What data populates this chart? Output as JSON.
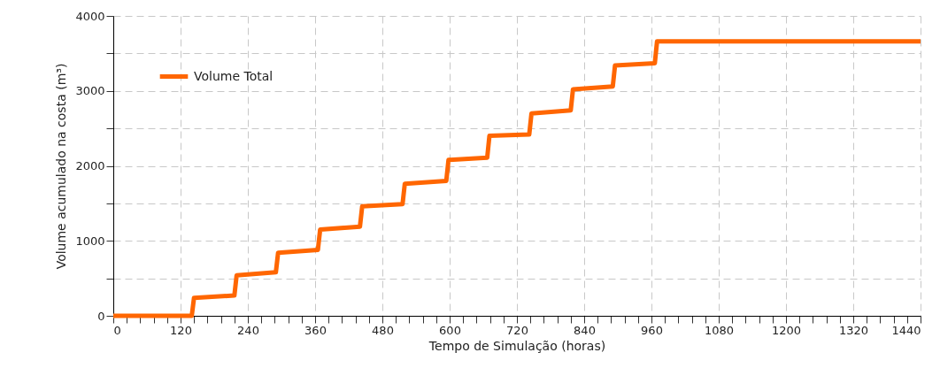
{
  "chart_data": {
    "type": "line",
    "xlabel": "Tempo de Simulação (horas)",
    "ylabel": "Volume acumulado na costa (m³)",
    "x": [
      0,
      140,
      144,
      216,
      220,
      290,
      294,
      365,
      369,
      440,
      444,
      516,
      520,
      594,
      598,
      667,
      671,
      742,
      746,
      816,
      820,
      891,
      895,
      966,
      970,
      1440
    ],
    "series": [
      {
        "name": "Volume Total",
        "color": "#ff6600",
        "values": [
          0,
          0,
          240,
          270,
          540,
          580,
          840,
          880,
          1150,
          1190,
          1460,
          1490,
          1760,
          1800,
          2080,
          2110,
          2400,
          2420,
          2700,
          2740,
          3020,
          3060,
          3340,
          3370,
          3660,
          3660
        ]
      }
    ],
    "xlim": [
      0,
      1440
    ],
    "ylim": [
      0,
      4000
    ],
    "xticks": [
      0,
      {
        "value": 24,
        "label": null
      },
      {
        "value": 48,
        "label": null
      },
      {
        "value": 72,
        "label": null
      },
      {
        "value": 96,
        "label": null
      },
      120,
      {
        "value": 144,
        "label": null
      },
      {
        "value": 168,
        "label": null
      },
      {
        "value": 192,
        "label": null
      },
      {
        "value": 216,
        "label": null
      },
      240,
      {
        "value": 264,
        "label": null
      },
      {
        "value": 288,
        "label": null
      },
      {
        "value": 312,
        "label": null
      },
      {
        "value": 336,
        "label": null
      },
      360,
      {
        "value": 384,
        "label": null
      },
      {
        "value": 408,
        "label": null
      },
      {
        "value": 432,
        "label": null
      },
      {
        "value": 456,
        "label": null
      },
      480,
      {
        "value": 504,
        "label": null
      },
      {
        "value": 528,
        "label": null
      },
      {
        "value": 552,
        "label": null
      },
      {
        "value": 576,
        "label": null
      },
      600,
      {
        "value": 624,
        "label": null
      },
      {
        "value": 648,
        "label": null
      },
      {
        "value": 672,
        "label": null
      },
      {
        "value": 696,
        "label": null
      },
      720,
      {
        "value": 744,
        "label": null
      },
      {
        "value": 768,
        "label": null
      },
      {
        "value": 792,
        "label": null
      },
      {
        "value": 816,
        "label": null
      },
      840,
      {
        "value": 864,
        "label": null
      },
      {
        "value": 888,
        "label": null
      },
      {
        "value": 912,
        "label": null
      },
      {
        "value": 936,
        "label": null
      },
      960,
      {
        "value": 984,
        "label": null
      },
      {
        "value": 1008,
        "label": null
      },
      {
        "value": 1032,
        "label": null
      },
      {
        "value": 1056,
        "label": null
      },
      1080,
      {
        "value": 1104,
        "label": null
      },
      {
        "value": 1128,
        "label": null
      },
      {
        "value": 1152,
        "label": null
      },
      {
        "value": 1176,
        "label": null
      },
      1200,
      {
        "value": 1224,
        "label": null
      },
      {
        "value": 1248,
        "label": null
      },
      {
        "value": 1272,
        "label": null
      },
      {
        "value": 1296,
        "label": null
      },
      1320,
      {
        "value": 1344,
        "label": null
      },
      {
        "value": 1368,
        "label": null
      },
      {
        "value": 1392,
        "label": null
      },
      {
        "value": 1416,
        "label": null
      },
      1440
    ],
    "yticks": [
      0,
      {
        "value": 500,
        "label": null
      },
      1000,
      {
        "value": 1500,
        "label": null
      },
      2000,
      {
        "value": 2500,
        "label": null
      },
      3000,
      {
        "value": 3500,
        "label": null
      },
      4000
    ],
    "grid": true,
    "legend": "top left",
    "marker": "none",
    "line_style": "solid"
  }
}
